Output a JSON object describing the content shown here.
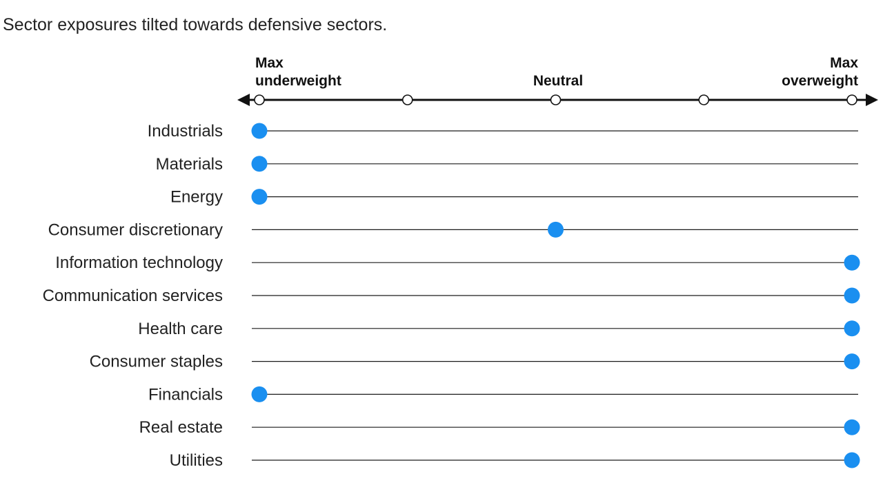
{
  "subtitle": "Sector exposures tilted towards defensive sectors.",
  "chart_data": {
    "type": "scatter",
    "scale": {
      "min_label_lines": [
        "Max",
        "underweight"
      ],
      "mid_label": "Neutral",
      "max_label_lines": [
        "Max",
        "overweight"
      ],
      "positions": [
        -2,
        -1,
        0,
        1,
        2
      ]
    },
    "categories": [
      "Industrials",
      "Materials",
      "Energy",
      "Consumer discretionary",
      "Information technology",
      "Communication services",
      "Health care",
      "Consumer staples",
      "Financials",
      "Real estate",
      "Utilities"
    ],
    "values": [
      -2,
      -2,
      -2,
      0,
      2,
      2,
      2,
      2,
      -2,
      2,
      2
    ],
    "xlim": [
      -2,
      2
    ],
    "colors": {
      "dot": "#1a8ff0",
      "line": "#1a1a1a",
      "axis": "#111111"
    }
  }
}
